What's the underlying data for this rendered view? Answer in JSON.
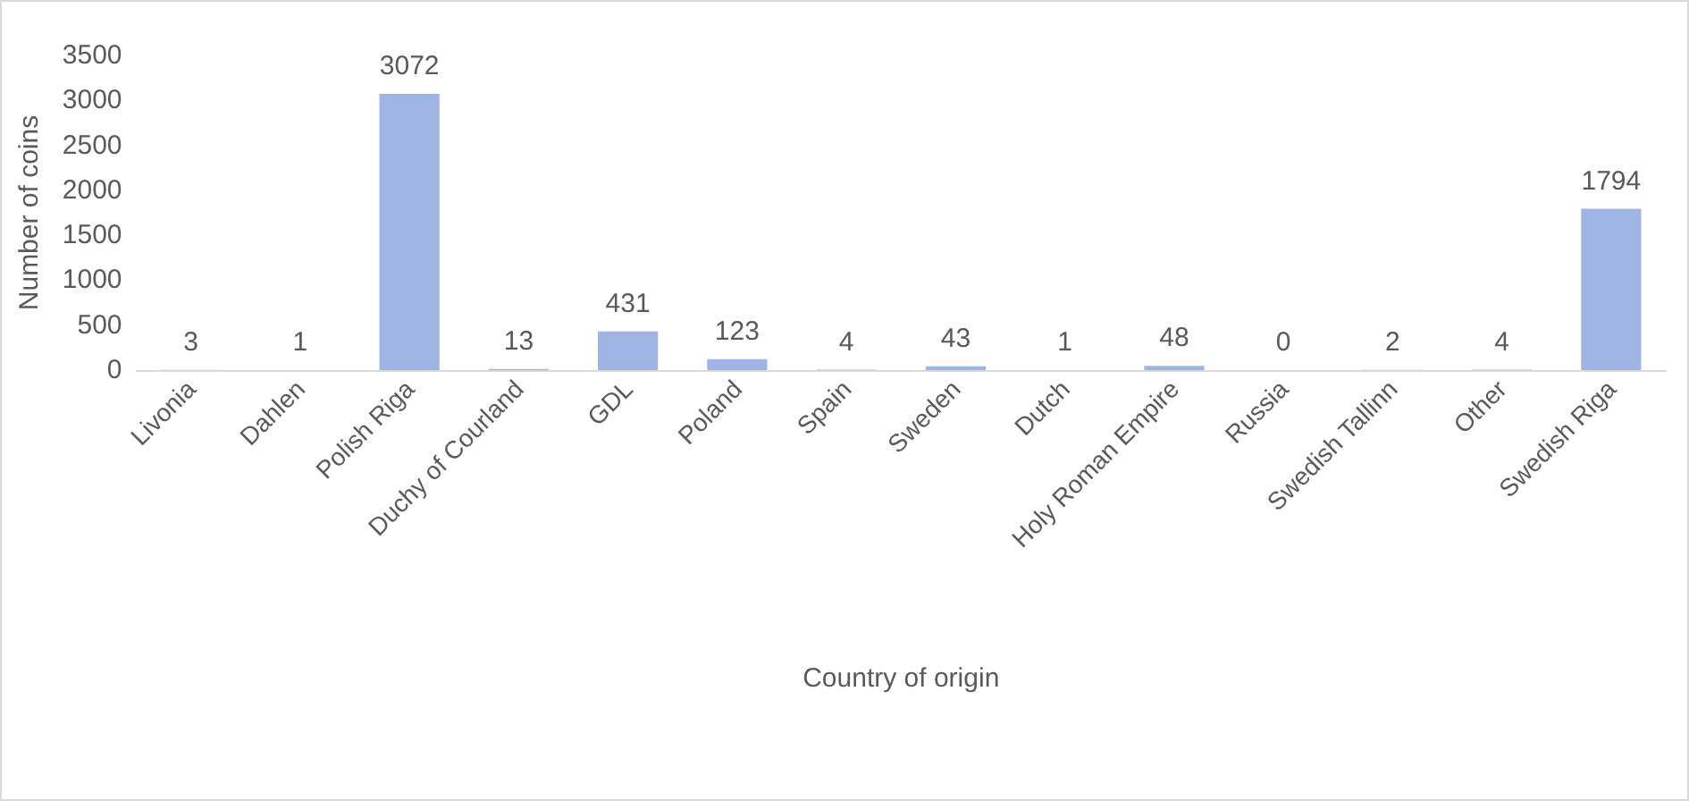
{
  "chart_data": {
    "type": "bar",
    "xlabel": "Country of origin",
    "ylabel": "Number of coins",
    "categories": [
      "Livonia",
      "Dahlen",
      "Polish Riga",
      "Duchy of Courland",
      "GDL",
      "Poland",
      "Spain",
      "Sweden",
      "Dutch",
      "Holy Roman Empire",
      "Russia",
      "Swedish Tallinn",
      "Other",
      "Swedish Riga"
    ],
    "values": [
      3,
      1,
      3072,
      13,
      431,
      123,
      4,
      43,
      1,
      48,
      0,
      2,
      4,
      1794
    ],
    "color": "#9fb4e2",
    "ylim": [
      0,
      3500
    ],
    "yticks": [
      0,
      500,
      1000,
      1500,
      2000,
      2500,
      3000,
      3500
    ],
    "grid": false,
    "data_labels": true
  }
}
